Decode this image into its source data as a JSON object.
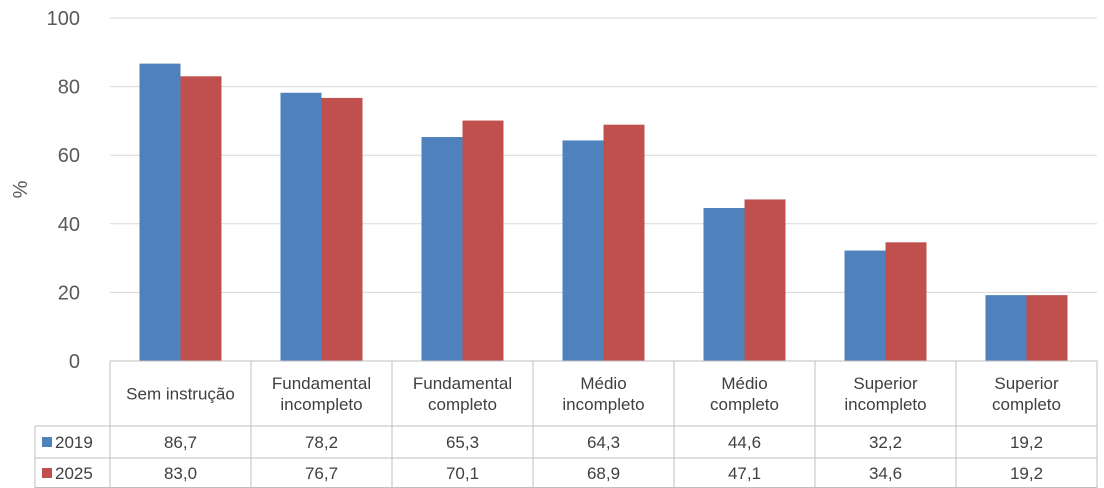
{
  "chart_data": {
    "type": "bar",
    "categories": [
      [
        "Sem instrução"
      ],
      [
        "Fundamental",
        "incompleto"
      ],
      [
        "Fundamental",
        "completo"
      ],
      [
        "Médio",
        "incompleto"
      ],
      [
        "Médio",
        "completo"
      ],
      [
        "Superior",
        "incompleto"
      ],
      [
        "Superior",
        "completo"
      ]
    ],
    "series": [
      {
        "name": "2019",
        "color": "#4f81bd",
        "values": [
          86.7,
          78.2,
          65.3,
          64.3,
          44.6,
          32.2,
          19.2
        ],
        "labels": [
          "86,7",
          "78,2",
          "65,3",
          "64,3",
          "44,6",
          "32,2",
          "19,2"
        ]
      },
      {
        "name": "2025",
        "color": "#c0504d",
        "values": [
          83.0,
          76.7,
          70.1,
          68.9,
          47.1,
          34.6,
          19.2
        ],
        "labels": [
          "83,0",
          "76,7",
          "70,1",
          "68,9",
          "47,1",
          "34,6",
          "19,2"
        ]
      }
    ],
    "ylabel": "%",
    "ylim": [
      0,
      100
    ],
    "yticks": [
      0,
      20,
      40,
      60,
      80,
      100
    ],
    "grid": true,
    "legend": "data-table"
  }
}
